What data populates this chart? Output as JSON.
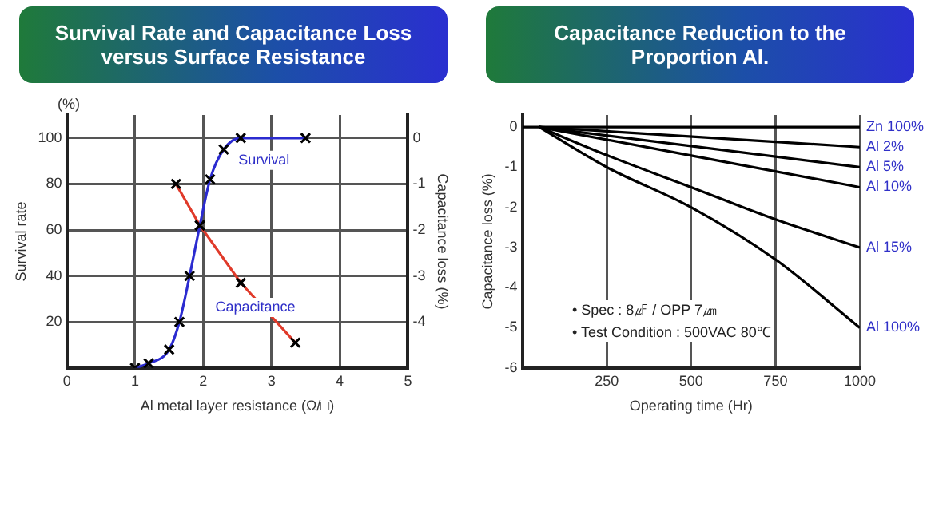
{
  "chart_data": [
    {
      "type": "line",
      "title": "Survival Rate and Capacitance Loss versus Surface Resistance",
      "xlabel": "Al metal layer resistance (Ω/□)",
      "ylabel": "Survival rate",
      "y2label": "Capacitance loss (%)",
      "annotations": [
        "(%)"
      ],
      "xlim": [
        0,
        5
      ],
      "xticks": [
        0,
        1,
        2,
        3,
        4,
        5
      ],
      "ylim": [
        0,
        110
      ],
      "yticks": [
        20,
        40,
        60,
        80,
        100
      ],
      "y2lim": [
        -5,
        0.5
      ],
      "y2ticks": [
        0,
        -1,
        -2,
        -3,
        -4
      ],
      "grid": true,
      "legend": false,
      "marker": "cross",
      "series": [
        {
          "name": "Survival",
          "color": "#2b2bd0",
          "x": [
            1,
            1.2,
            1.5,
            1.65,
            1.8,
            1.95,
            2.1,
            2.3,
            2.55,
            3.5
          ],
          "values": [
            0,
            2,
            8,
            20,
            40,
            62,
            82,
            95,
            100,
            100
          ]
        },
        {
          "name": "Capacitance",
          "color": "#e03a2a",
          "axis": "y2",
          "x": [
            1.6,
            1.95,
            2.55,
            3.35
          ],
          "values": [
            -1,
            -1.9,
            -3.15,
            -4.45
          ]
        }
      ]
    },
    {
      "type": "line",
      "title": "Capacitance Reduction to the Proportion Al.",
      "xlabel": "Operating time (Hr)",
      "ylabel": "Capacitance loss (%)",
      "annotations": [
        "• Spec : 8㎌ / OPP 7㎛",
        "• Test Condition : 500VAC 80℃"
      ],
      "xlim": [
        0,
        1000
      ],
      "xticks": [
        250,
        500,
        750,
        1000
      ],
      "ylim": [
        -6,
        0.3
      ],
      "yticks": [
        0,
        -1,
        -2,
        -3,
        -4,
        -5,
        -6
      ],
      "grid": "x",
      "legend": false,
      "marker": "none",
      "series": [
        {
          "name": "Zn 100%",
          "color": "#000000",
          "x": [
            0,
            50,
            1000
          ],
          "values": [
            0,
            0,
            0
          ]
        },
        {
          "name": "Al 2%",
          "color": "#000000",
          "x": [
            50,
            1000
          ],
          "values": [
            0,
            -0.5
          ]
        },
        {
          "name": "Al 5%",
          "color": "#000000",
          "x": [
            50,
            1000
          ],
          "values": [
            0,
            -1
          ]
        },
        {
          "name": "Al 10%",
          "color": "#000000",
          "x": [
            50,
            1000
          ],
          "values": [
            0,
            -1.5
          ]
        },
        {
          "name": "Al 15%",
          "color": "#000000",
          "x": [
            50,
            250,
            500,
            750,
            1000
          ],
          "values": [
            0,
            -0.7,
            -1.5,
            -2.3,
            -3
          ]
        },
        {
          "name": "Al 100%",
          "color": "#000000",
          "x": [
            50,
            250,
            500,
            750,
            1000
          ],
          "values": [
            0,
            -1,
            -2,
            -3.3,
            -5
          ]
        }
      ]
    }
  ]
}
